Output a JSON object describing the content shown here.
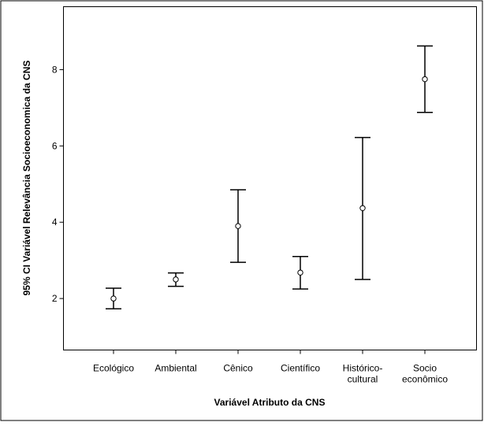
{
  "chart_data": {
    "type": "errorbar",
    "xlabel": "Variável Atributo da CNS",
    "ylabel": "95% CI Variável Relevância Socioeconomica da CNS",
    "ylim": [
      0.65,
      9.65
    ],
    "yticks": [
      "2",
      "4",
      "6",
      "8"
    ],
    "categories": [
      [
        "Ecológico"
      ],
      [
        "Ambiental"
      ],
      [
        "Cênico"
      ],
      [
        "Científico"
      ],
      [
        "Histórico-",
        "cultural"
      ],
      [
        "Socio",
        "econômico"
      ]
    ],
    "means": [
      2.0,
      2.5,
      3.9,
      2.68,
      4.37,
      7.75
    ],
    "lower": [
      1.73,
      2.32,
      2.95,
      2.25,
      2.5,
      6.88
    ],
    "upper": [
      2.27,
      2.67,
      4.85,
      3.1,
      6.22,
      8.62
    ],
    "grid": false,
    "legend": "none"
  }
}
